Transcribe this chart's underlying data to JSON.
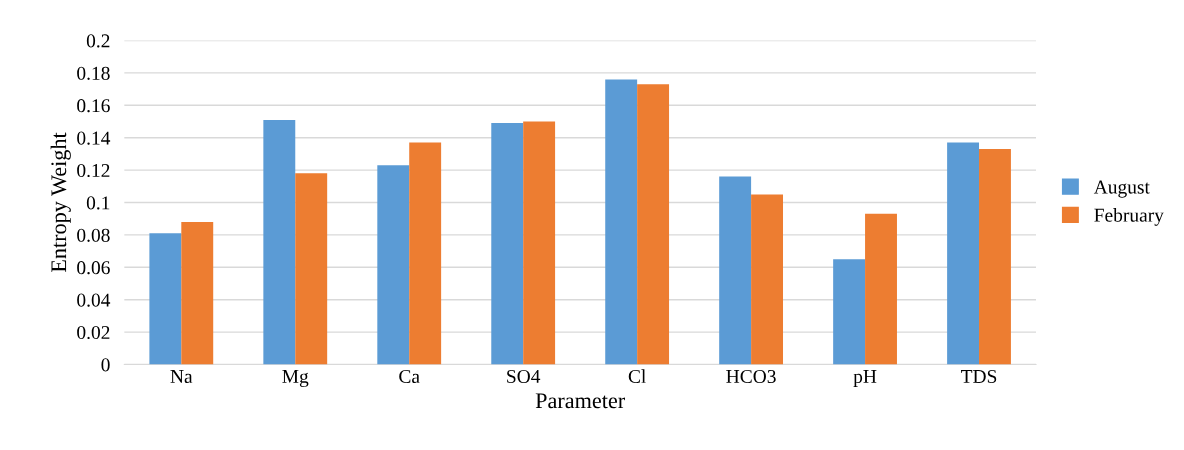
{
  "chart_data": {
    "type": "bar",
    "xlabel": "Parameter",
    "ylabel": "Entropy Weight",
    "categories": [
      "Na",
      "Mg",
      "Ca",
      "SO4",
      "Cl",
      "HCO3",
      "pH",
      "TDS"
    ],
    "series": [
      {
        "name": "August",
        "color": "#5b9bd5",
        "values": [
          0.081,
          0.151,
          0.123,
          0.149,
          0.176,
          0.116,
          0.065,
          0.137
        ]
      },
      {
        "name": "February",
        "color": "#ed7d31",
        "values": [
          0.088,
          0.118,
          0.137,
          0.15,
          0.173,
          0.105,
          0.093,
          0.133
        ]
      }
    ],
    "ylim": [
      0,
      0.2
    ],
    "yticks": [
      0,
      0.02,
      0.04,
      0.06,
      0.08,
      0.1,
      0.12,
      0.14,
      0.16,
      0.18,
      0.2
    ],
    "grid": "y",
    "legend": "right"
  }
}
